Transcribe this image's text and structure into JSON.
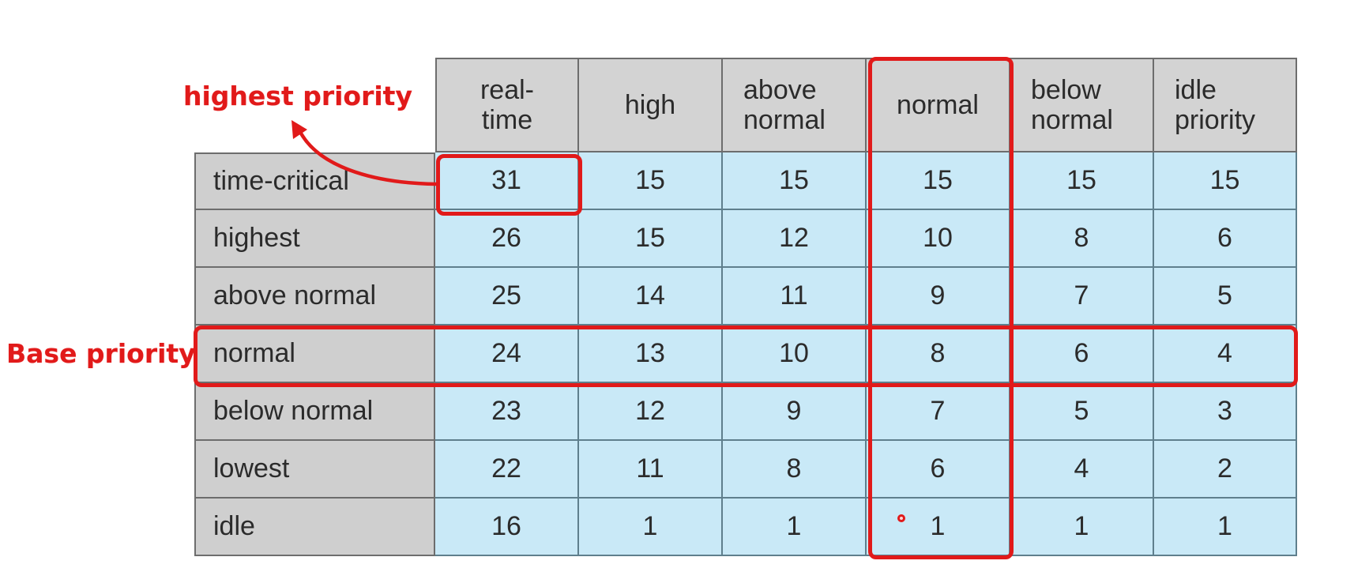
{
  "table": {
    "corner": "",
    "columns": [
      "real-\ntime",
      "high",
      "above\nnormal",
      "normal",
      "below\nnormal",
      "idle\npriority"
    ],
    "rows": [
      {
        "label": "time-critical",
        "values": [
          "31",
          "15",
          "15",
          "15",
          "15",
          "15"
        ]
      },
      {
        "label": "highest",
        "values": [
          "26",
          "15",
          "12",
          "10",
          "8",
          "6"
        ]
      },
      {
        "label": "above normal",
        "values": [
          "25",
          "14",
          "11",
          "9",
          "7",
          "5"
        ]
      },
      {
        "label": "normal",
        "values": [
          "24",
          "13",
          "10",
          "8",
          "6",
          "4"
        ]
      },
      {
        "label": "below normal",
        "values": [
          "23",
          "12",
          "9",
          "7",
          "5",
          "3"
        ]
      },
      {
        "label": "lowest",
        "values": [
          "22",
          "11",
          "8",
          "6",
          "4",
          "2"
        ]
      },
      {
        "label": "idle",
        "values": [
          "16",
          "1",
          "1",
          "1",
          "1",
          "1"
        ]
      }
    ]
  },
  "annotations": {
    "highest_priority_label": "highest priority",
    "base_priority_label": "Base priority",
    "accent_color": "#e11a1a"
  },
  "colors": {
    "header_bg": "#d3d3d3",
    "value_bg": "#c9e9f7"
  }
}
